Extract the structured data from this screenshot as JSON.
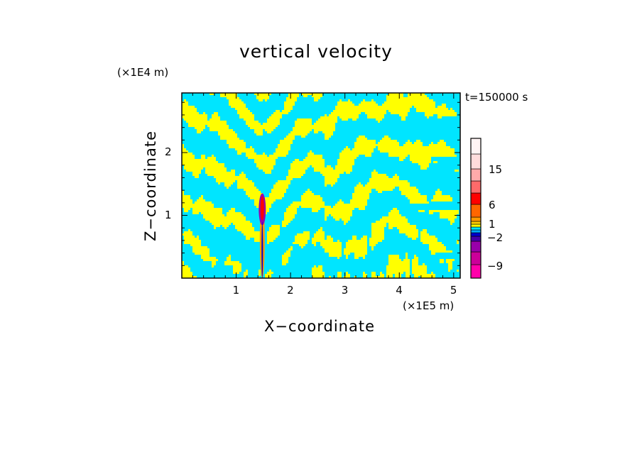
{
  "chart_data": {
    "type": "heatmap",
    "title": "vertical velocity",
    "xlabel": "X−coordinate",
    "ylabel": "Z−coordinate",
    "x_scale_label": "(×1E5 m)",
    "y_scale_label": "(×1E4 m)",
    "time_label": "t=150000 s",
    "x_ticks": [
      "1",
      "2",
      "3",
      "4",
      "5"
    ],
    "x_tick_values": [
      1,
      2,
      3,
      4,
      5
    ],
    "y_ticks": [
      "1",
      "2"
    ],
    "y_tick_values": [
      1,
      2
    ],
    "xlim": [
      0,
      5.12
    ],
    "ylim": [
      0,
      2.95
    ],
    "colorbar": {
      "tick_labels": [
        "15",
        "6",
        "1",
        "−2",
        "−9"
      ],
      "levels": [
        {
          "color": "#ff00aa"
        },
        {
          "color": "#cc0099"
        },
        {
          "color": "#9900aa"
        },
        {
          "color": "#4400aa"
        },
        {
          "color": "#0000cc"
        },
        {
          "color": "#00aaff"
        },
        {
          "color": "#00e5ff"
        },
        {
          "color": "#ffff00"
        },
        {
          "color": "#ffcc00"
        },
        {
          "color": "#ff9900"
        },
        {
          "color": "#ff6600"
        },
        {
          "color": "#ff0000"
        },
        {
          "color": "#ff6a6a"
        },
        {
          "color": "#ffaaaa"
        },
        {
          "color": "#ffdcdc"
        },
        {
          "color": "#fff4f4"
        }
      ]
    },
    "dominant_colors": {
      "positive": "#ffff00",
      "negative": "#00e5ff"
    },
    "structures": [
      {
        "desc": "narrow updraft core",
        "x": 1.48,
        "z_top": 1.35
      }
    ]
  }
}
